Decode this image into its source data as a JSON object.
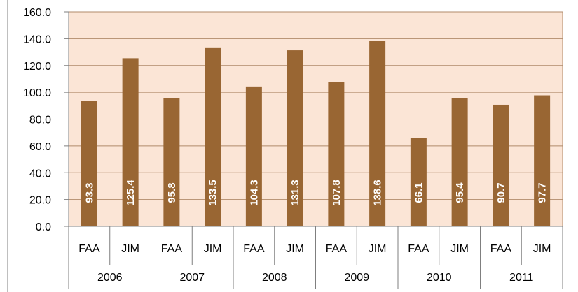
{
  "colors": {
    "plot_background": "#FBE5D6",
    "bar_fill": "#996633",
    "grid_line": "#B08A6A",
    "axis_line": "#7F7F7F",
    "frame_line": "#7F7F7F",
    "data_label": "#FFFFFF"
  },
  "chart_data": {
    "type": "bar",
    "ylim": [
      0,
      160
    ],
    "y_ticks": [
      "0.0",
      "20.0",
      "40.0",
      "60.0",
      "80.0",
      "100.0",
      "120.0",
      "140.0",
      "160.0"
    ],
    "grid": true,
    "legend": "none",
    "groups": [
      "2006",
      "2007",
      "2008",
      "2009",
      "2010",
      "2011"
    ],
    "categories": [
      "FAA",
      "JIM",
      "FAA",
      "JIM",
      "FAA",
      "JIM",
      "FAA",
      "JIM",
      "FAA",
      "JIM",
      "FAA",
      "JIM"
    ],
    "values": [
      93.3,
      125.4,
      95.8,
      133.5,
      104.3,
      131.3,
      107.8,
      138.6,
      66.1,
      95.4,
      90.7,
      97.7
    ],
    "data_labels": [
      "93.3",
      "125.4",
      "95.8",
      "133.5",
      "104.3",
      "131.3",
      "107.8",
      "138.6",
      "66.1",
      "95.4",
      "90.7",
      "97.7"
    ]
  }
}
